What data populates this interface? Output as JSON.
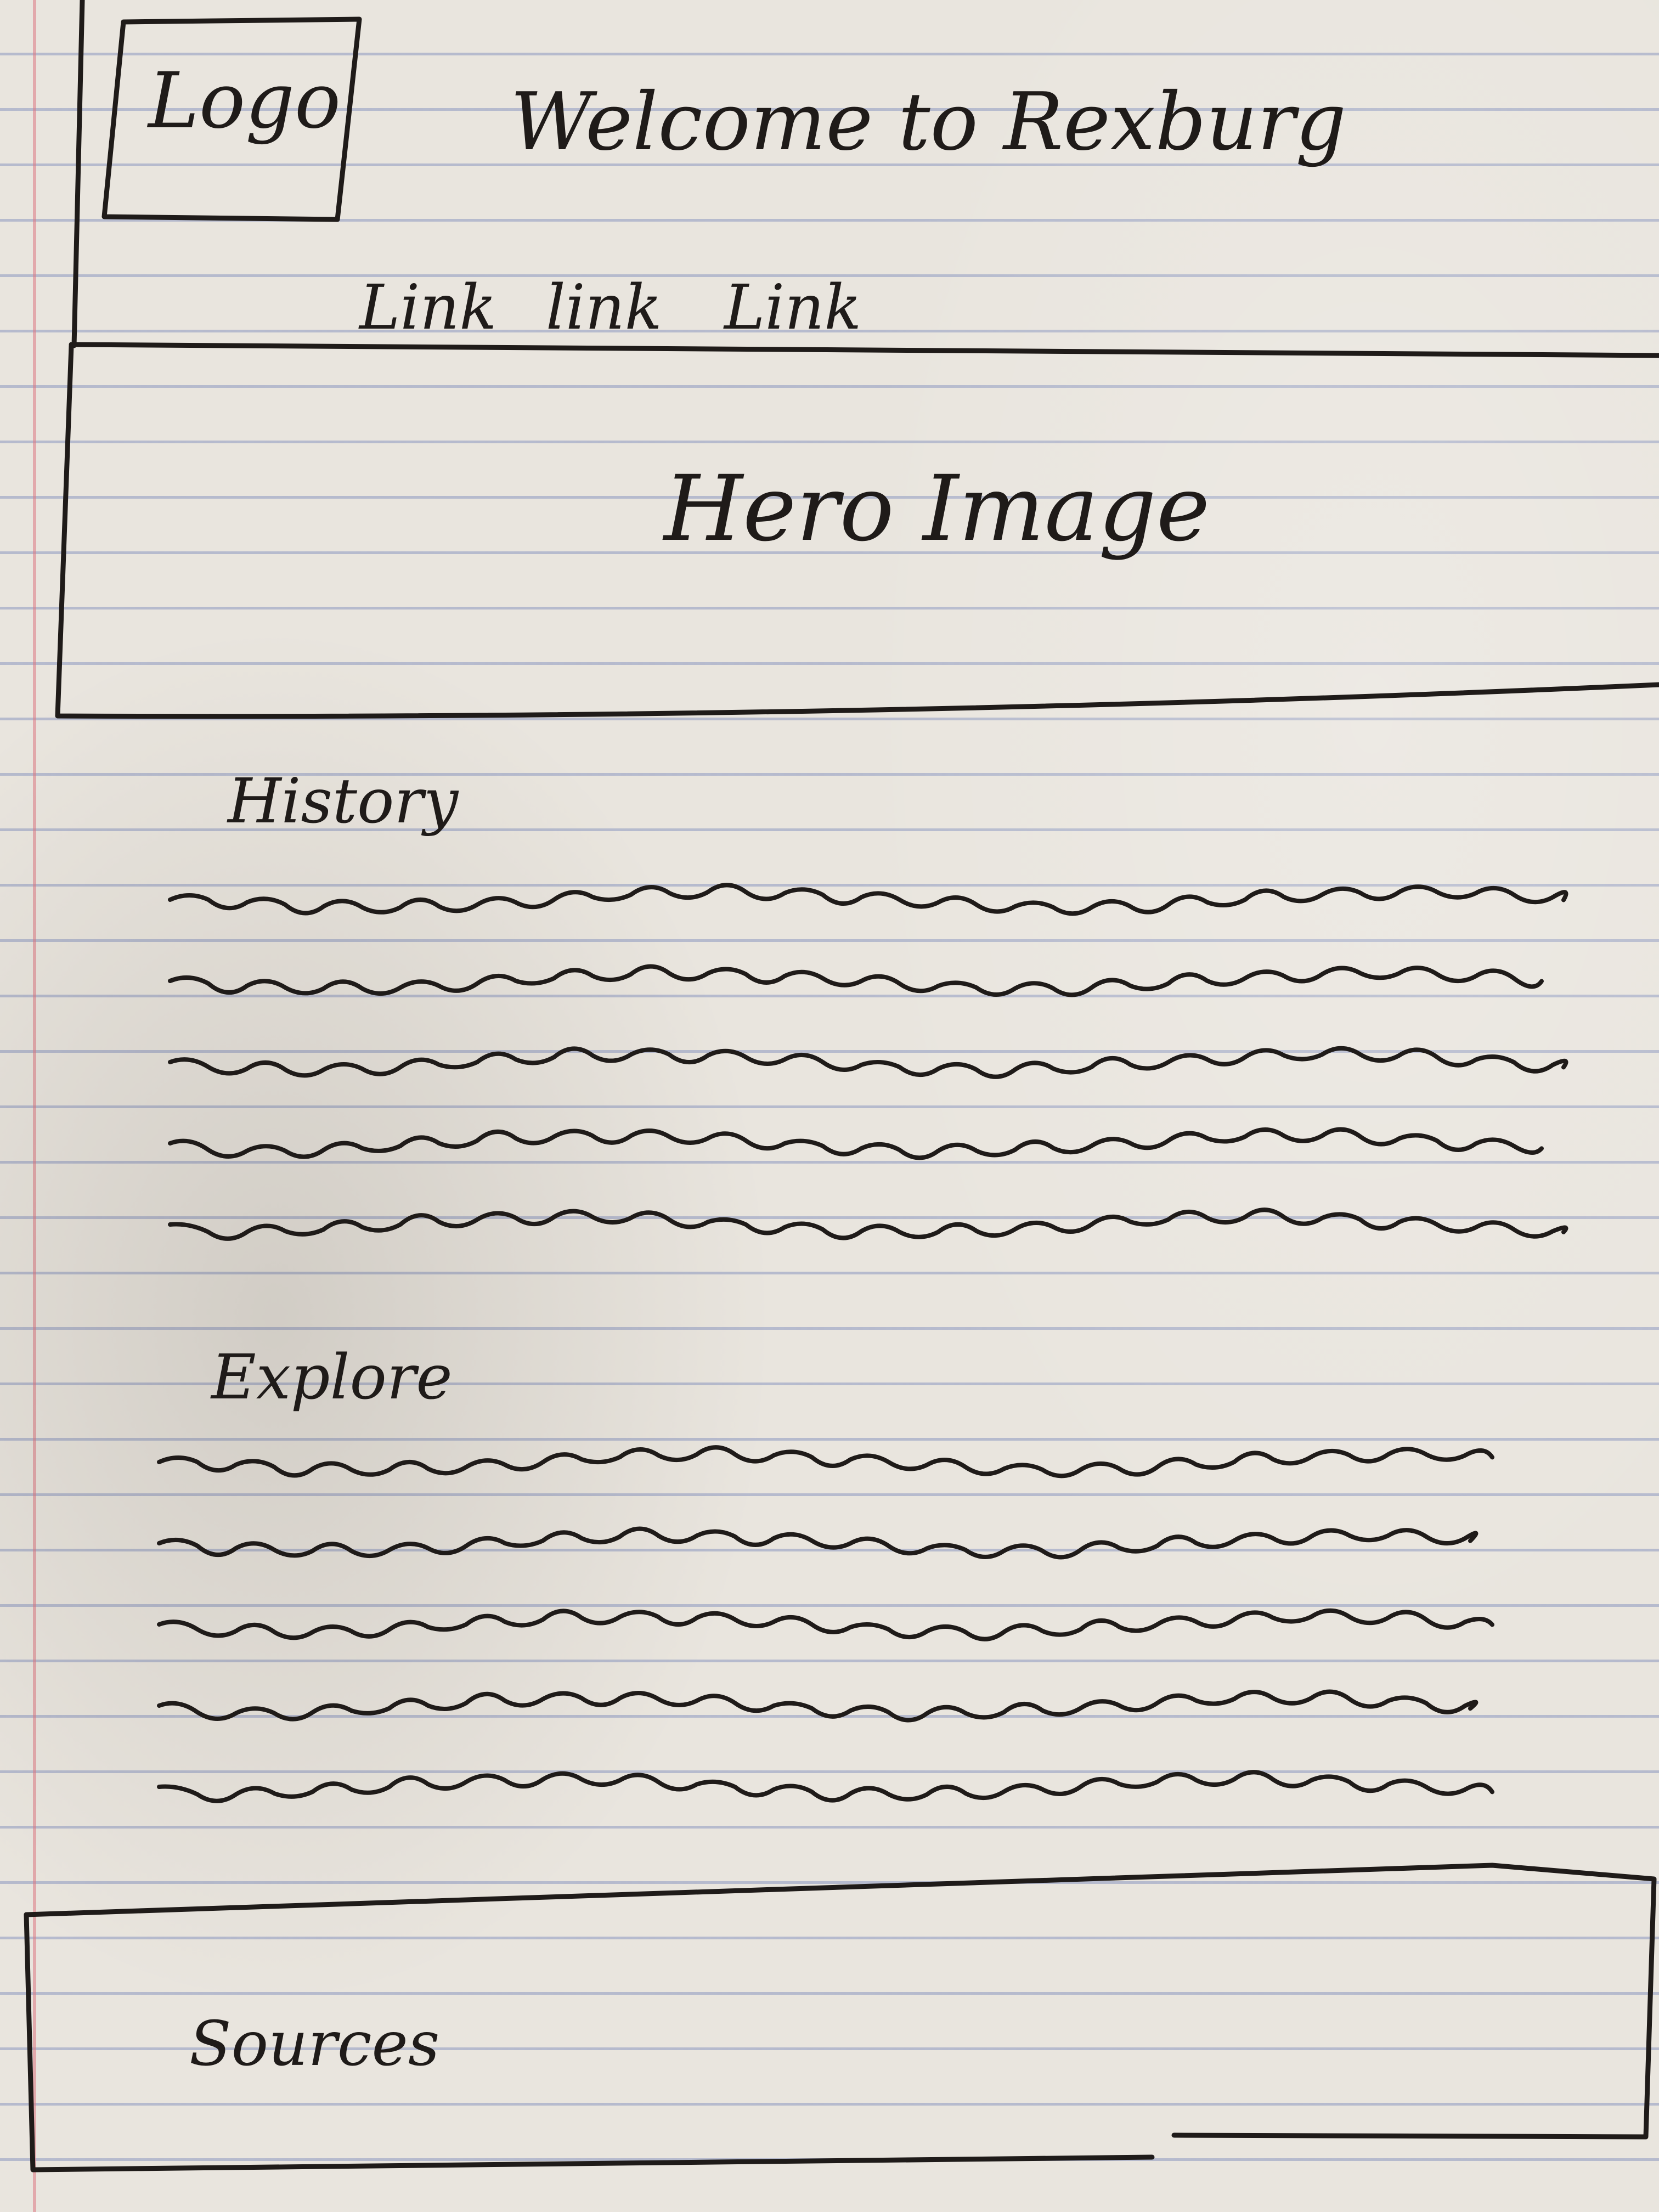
{
  "header": {
    "logo_label": "Logo",
    "title": "Welcome to Rexburg",
    "nav_links": [
      "Link",
      "link",
      "Link"
    ]
  },
  "hero": {
    "label": "Hero Image"
  },
  "sections": [
    {
      "heading": "History",
      "placeholder_lines": 5
    },
    {
      "heading": "Explore",
      "placeholder_lines": 5
    }
  ],
  "footer": {
    "label": "Sources"
  },
  "colors": {
    "ink": "#1f1b19",
    "paper": "#e9e5de",
    "rule_line": "#7887b9",
    "margin_line": "#dc7882"
  }
}
